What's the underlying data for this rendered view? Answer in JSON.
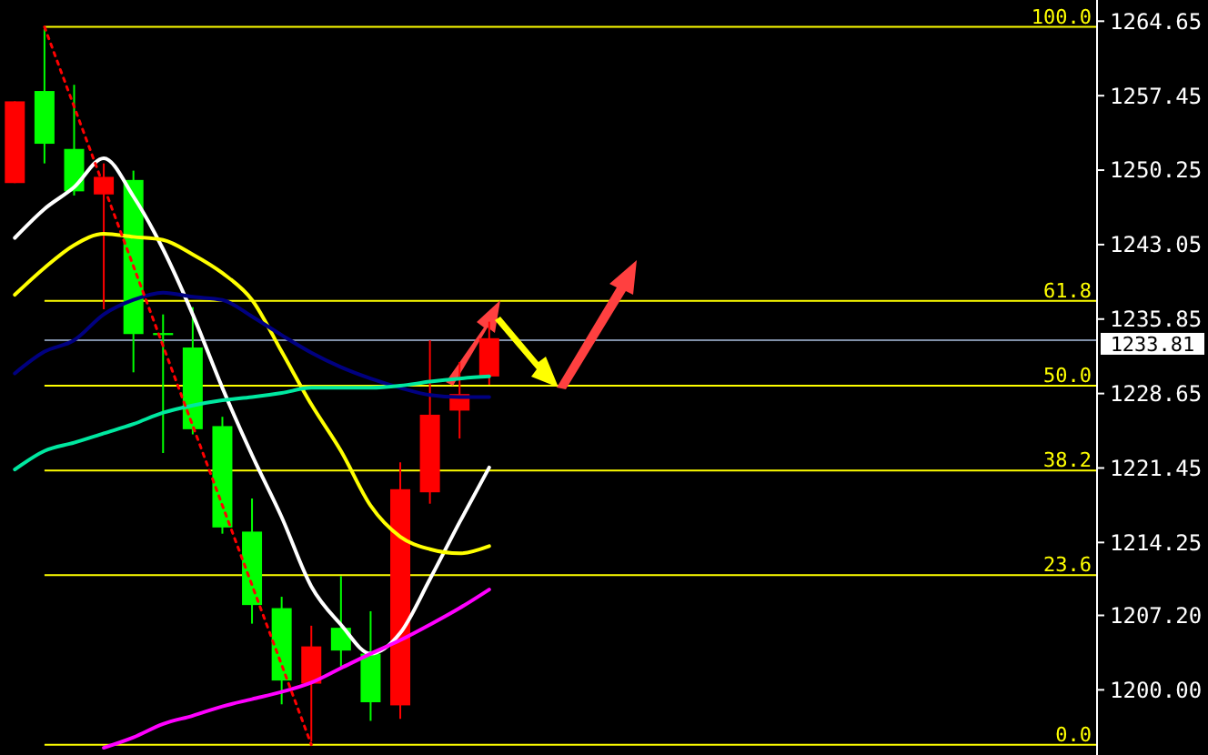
{
  "chart_data": {
    "type": "candlestick",
    "categories": [
      null,
      null,
      null,
      null,
      null,
      null,
      null,
      null,
      null,
      null,
      null,
      null,
      null,
      null,
      null,
      null,
      null,
      null,
      null,
      null,
      null,
      null,
      null,
      null,
      null,
      null,
      null,
      null,
      null,
      null,
      null,
      null,
      null,
      null,
      null,
      null,
      null
    ],
    "ohlc": [
      [
        1249.0,
        1256.9,
        1249.0,
        1256.9
      ],
      [
        1257.9,
        1263.9,
        1250.9,
        1252.8
      ],
      [
        1252.3,
        1258.5,
        1247.8,
        1248.2
      ],
      [
        1247.9,
        1250.9,
        1236.8,
        1249.6
      ],
      [
        1249.3,
        1250.2,
        1230.7,
        1234.4
      ],
      [
        1234.5,
        1236.3,
        1222.9,
        1234.3
      ],
      [
        1233.1,
        1237.0,
        1224.7,
        1225.2
      ],
      [
        1225.5,
        1226.4,
        1215.1,
        1215.7
      ],
      [
        1215.3,
        1218.5,
        1206.4,
        1208.2
      ],
      [
        1207.9,
        1209.0,
        1198.6,
        1200.9
      ],
      [
        1200.6,
        1206.2,
        1195.0,
        1204.2
      ],
      [
        1206.0,
        1211.0,
        1202.2,
        1203.8
      ],
      [
        1203.5,
        1207.6,
        1197.0,
        1198.8
      ],
      [
        1198.5,
        1222.0,
        1197.2,
        1219.4
      ],
      [
        1219.1,
        1233.8,
        1218.0,
        1226.6
      ],
      [
        1227.0,
        1231.7,
        1224.3,
        1228.6
      ],
      [
        1230.3,
        1235.6,
        1229.5,
        1234.0
      ],
      null,
      null,
      null,
      null,
      null,
      null,
      null,
      null,
      null,
      null,
      null,
      null,
      null,
      null,
      null,
      null,
      null,
      null,
      null,
      null
    ],
    "colors": [
      "#ff0000",
      "#00ff00",
      "#00ff00",
      "#ff0000",
      "#00ff00",
      "#00ff00",
      "#00ff00",
      "#00ff00",
      "#00ff00",
      "#00ff00",
      "#ff0000",
      "#00ff00",
      "#00ff00",
      "#ff0000",
      "#ff0000",
      "#ff0000",
      "#ff0000",
      null,
      null,
      null,
      null,
      null,
      null,
      null,
      null,
      null,
      null,
      null,
      null,
      null,
      null,
      null,
      null,
      null,
      null,
      null,
      null
    ],
    "series": [
      {
        "type": "line",
        "color": "#ffffff",
        "values": [
          1243.7,
          1246.5,
          1248.6,
          1251.4,
          1247.7,
          1242.6,
          1236.3,
          1229.2,
          1222.7,
          1216.7,
          1210.0,
          1206.3,
          1203.5,
          1205.5,
          1210.7,
          1216.2,
          1221.5,
          null,
          null,
          null,
          null,
          null,
          null,
          null,
          null,
          null,
          null,
          null,
          null,
          null,
          null,
          null,
          null,
          null,
          null,
          null,
          null
        ]
      },
      {
        "type": "line",
        "color": "#ffff00",
        "values": [
          1238.2,
          1240.8,
          1243.0,
          1244.1,
          1243.8,
          1243.5,
          1242.1,
          1240.3,
          1237.7,
          1232.7,
          1227.6,
          1223.1,
          1217.8,
          1214.8,
          1213.6,
          1213.2,
          1213.9,
          null,
          null,
          null,
          null,
          null,
          null,
          null,
          null,
          null,
          null,
          null,
          null,
          null,
          null,
          null,
          null,
          null,
          null,
          null,
          null
        ]
      },
      {
        "type": "line",
        "color": "#000080",
        "values": [
          1230.6,
          1232.7,
          1233.8,
          1236.3,
          1237.7,
          1238.4,
          1238.0,
          1237.7,
          1236.1,
          1234.3,
          1232.6,
          1231.2,
          1230.1,
          1229.2,
          1228.5,
          1228.3,
          1228.3,
          null,
          null,
          null,
          null,
          null,
          null,
          null,
          null,
          null,
          null,
          null,
          null,
          null,
          null,
          null,
          null,
          null,
          null,
          null,
          null
        ]
      },
      {
        "type": "line",
        "color": "#00e8a0",
        "values": [
          1221.3,
          1223.1,
          1223.9,
          1224.8,
          1225.7,
          1226.8,
          1227.5,
          1228.0,
          1228.3,
          1228.7,
          1229.2,
          1229.2,
          1229.2,
          1229.4,
          1229.8,
          1230.1,
          1230.3,
          null,
          null,
          null,
          null,
          null,
          null,
          null,
          null,
          null,
          null,
          null,
          null,
          null,
          null,
          null,
          null,
          null,
          null,
          null,
          null
        ]
      },
      {
        "type": "line",
        "color": "#ff00ff",
        "values": [
          null,
          null,
          null,
          1194.4,
          1195.4,
          1196.7,
          1197.5,
          1198.4,
          1199.1,
          1199.8,
          1200.7,
          1202.1,
          1203.5,
          1204.8,
          1206.3,
          1207.9,
          1209.7,
          null,
          null,
          null,
          null,
          null,
          null,
          null,
          null,
          null,
          null,
          null,
          null,
          null,
          null,
          null,
          null,
          null,
          null,
          null,
          null
        ]
      },
      {
        "type": "line",
        "color": "#ff0000",
        "line_style": "dotted",
        "values": [
          null,
          1264.1,
          null,
          null,
          null,
          null,
          null,
          null,
          null,
          null,
          1194.7,
          null,
          null,
          null,
          null,
          null,
          null,
          null,
          null,
          null,
          null,
          null,
          null,
          null,
          null,
          null,
          null,
          null,
          null,
          null,
          null,
          null,
          null,
          null,
          null,
          null,
          null
        ]
      }
    ],
    "ylim": [
      1193.7,
      1266.7
    ],
    "yticks": [
      1264.65,
      1257.45,
      1250.25,
      1243.05,
      1235.85,
      1228.65,
      1221.45,
      1214.25,
      {
        "value": 1207.2,
        "label": "1207.20"
      },
      {
        "value": 1200,
        "label": "1200.00"
      }
    ],
    "ref_lines": [
      {
        "axis": "y",
        "value": 1264.1,
        "color": "#ffff00"
      },
      {
        "axis": "y",
        "value": 1237.6,
        "color": "#ffff00"
      },
      {
        "axis": "y",
        "value": 1229.4,
        "color": "#ffff00"
      },
      {
        "axis": "y",
        "value": 1221.2,
        "color": "#ffff00"
      },
      {
        "axis": "y",
        "value": 1211.1,
        "color": "#ffff00"
      },
      {
        "axis": "y",
        "value": 1194.7,
        "color": "#ffff00"
      },
      {
        "axis": "y",
        "value": 1233.81,
        "label": "1233.81",
        "color": "#8090a8"
      }
    ],
    "annotations": [
      {
        "text": "100.0",
        "y": 1264.1
      },
      {
        "text": "61.8",
        "y": 1237.6
      },
      {
        "text": "50.0",
        "y": 1229.4
      },
      {
        "text": "38.2",
        "y": 1221.2
      },
      {
        "text": "23.6",
        "y": 1211.1
      },
      {
        "text": "0.0",
        "y": 1194.7
      }
    ],
    "tick_labels": "y",
    "grid": false
  }
}
